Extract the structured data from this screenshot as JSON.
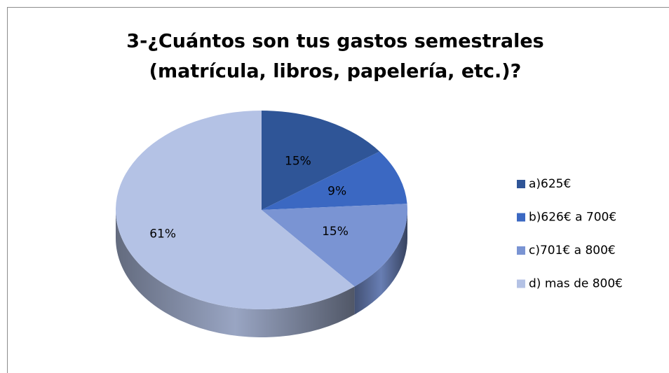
{
  "chart_data": {
    "type": "pie",
    "title": [
      "3-¿Cuántos son tus gastos semestrales",
      "(matrícula, libros, papelería, etc.)?"
    ],
    "categories": [
      "a)625€",
      "b)626€ a 700€",
      "c)701€ a 800€",
      "d) mas de 800€"
    ],
    "values": [
      15,
      9,
      15,
      61
    ],
    "value_labels": [
      "15%",
      "9%",
      "15%",
      "61%"
    ],
    "colors": [
      "#2f5597",
      "#3b68c2",
      "#7a94d3",
      "#b4c2e5"
    ],
    "legend": "right"
  }
}
